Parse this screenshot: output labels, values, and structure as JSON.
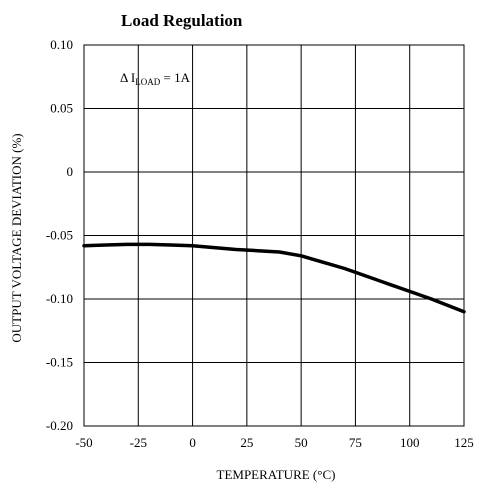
{
  "chart_data": {
    "type": "line",
    "title": "Load Regulation",
    "xlabel": "TEMPERATURE (°C)",
    "ylabel": "OUTPUT VOLTAGE DEVIATION (%)",
    "xlim": [
      -50,
      125
    ],
    "ylim": [
      -0.2,
      0.1
    ],
    "x_ticks": [
      -50,
      -25,
      0,
      25,
      50,
      75,
      100,
      125
    ],
    "x_tick_labels": [
      "-50",
      "-25",
      "0",
      "25",
      "50",
      "75",
      "100",
      "125"
    ],
    "y_ticks": [
      0.1,
      0.05,
      0,
      -0.05,
      -0.1,
      -0.15,
      -0.2
    ],
    "y_tick_labels": [
      "0.10",
      "0.05",
      "0",
      "-0.05",
      "-0.10",
      "-0.15",
      "-0.20"
    ],
    "grid": true,
    "annotation": {
      "prefix": "Δ I",
      "subscript": "LOAD",
      "suffix": " = 1A"
    },
    "series": [
      {
        "x": [
          -50,
          -40,
          -30,
          -25,
          -20,
          -10,
          0,
          10,
          20,
          30,
          40,
          50,
          60,
          70,
          80,
          90,
          100,
          110,
          125
        ],
        "values": [
          -0.058,
          -0.0575,
          -0.057,
          -0.057,
          -0.057,
          -0.0575,
          -0.058,
          -0.0595,
          -0.061,
          -0.062,
          -0.063,
          -0.066,
          -0.071,
          -0.076,
          -0.082,
          -0.088,
          -0.094,
          -0.1,
          -0.11
        ]
      }
    ]
  }
}
